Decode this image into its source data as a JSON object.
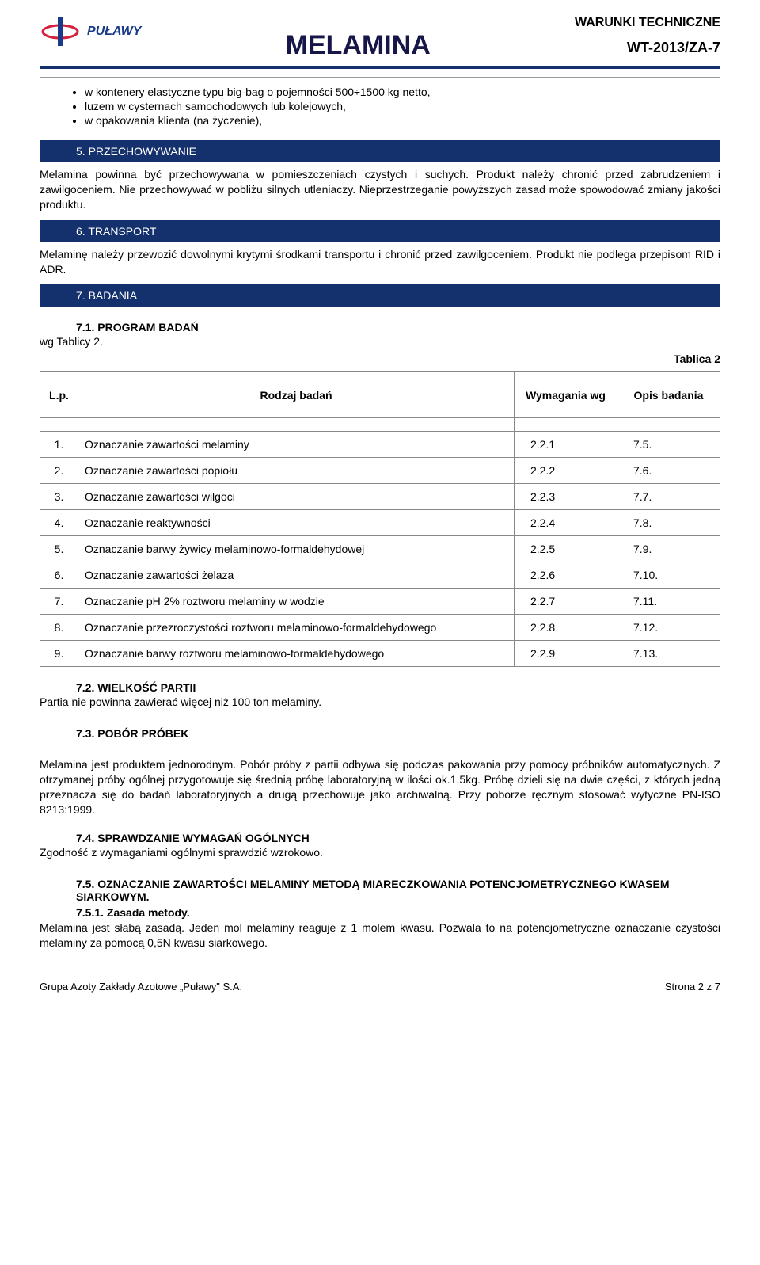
{
  "header": {
    "logo_text": "PUŁAWY",
    "title": "MELAMINA",
    "right_line1": "WARUNKI TECHNICZNE",
    "right_line2": "WT-2013/ZA-7"
  },
  "bullets": [
    "w kontenery elastyczne typu big-bag o pojemności 500÷1500 kg netto,",
    "luzem w cysternach samochodowych lub kolejowych,",
    "w opakowania klienta (na życzenie),"
  ],
  "sections": {
    "s5": "5.   PRZECHOWYWANIE",
    "s5_text": "Melamina powinna być przechowywana w pomieszczeniach czystych i suchych. Produkt należy chronić przed zabrudzeniem i zawilgoceniem. Nie przechowywać w pobliżu silnych utleniaczy. Nieprzestrzeganie powyższych zasad może spowodować zmiany jakości produktu.",
    "s6": "6.   TRANSPORT",
    "s6_text": "Melaminę należy przewozić dowolnymi krytymi środkami transportu i chronić przed zawilgoceniem. Produkt nie podlega przepisom RID i ADR.",
    "s7": "7.   BADANIA"
  },
  "program": {
    "heading": "7.1. PROGRAM BADAŃ",
    "subtext": "wg Tablicy 2.",
    "tablica": "Tablica 2"
  },
  "table": {
    "columns": {
      "lp": "L.p.",
      "rodzaj": "Rodzaj badań",
      "wym": "Wymagania wg",
      "opis": "Opis badania"
    },
    "rows": [
      {
        "n": "1.",
        "r": "Oznaczanie zawartości melaminy",
        "w": "2.2.1",
        "o": "7.5."
      },
      {
        "n": "2.",
        "r": "Oznaczanie zawartości popiołu",
        "w": "2.2.2",
        "o": "7.6."
      },
      {
        "n": "3.",
        "r": "Oznaczanie zawartości wilgoci",
        "w": "2.2.3",
        "o": "7.7."
      },
      {
        "n": "4.",
        "r": "Oznaczanie reaktywności",
        "w": "2.2.4",
        "o": "7.8."
      },
      {
        "n": "5.",
        "r": "Oznaczanie barwy żywicy melaminowo-formaldehydowej",
        "w": "2.2.5",
        "o": "7.9."
      },
      {
        "n": "6.",
        "r": "Oznaczanie zawartości żelaza",
        "w": "2.2.6",
        "o": "7.10."
      },
      {
        "n": "7.",
        "r": "Oznaczanie pH 2% roztworu melaminy w wodzie",
        "w": "2.2.7",
        "o": "7.11."
      },
      {
        "n": "8.",
        "r": "Oznaczanie przezroczystości roztworu melaminowo-formaldehydowego",
        "w": "2.2.8",
        "o": "7.12."
      },
      {
        "n": "9.",
        "r": "Oznaczanie barwy roztworu melaminowo-formaldehydowego",
        "w": "2.2.9",
        "o": "7.13."
      }
    ]
  },
  "sec72": {
    "heading": "7.2. WIELKOŚĆ PARTII",
    "text": "Partia nie powinna zawierać więcej niż 100 ton melaminy."
  },
  "sec73": {
    "heading": "7.3. POBÓR PRÓBEK",
    "text": "Melamina jest produktem jednorodnym. Pobór próby z partii odbywa się podczas pakowania przy pomocy próbników automatycznych. Z otrzymanej próby ogólnej przygotowuje się średnią próbę laboratoryjną w ilości ok.1,5kg. Próbę dzieli się na dwie części, z których jedną przeznacza się do badań laboratoryjnych a drugą przechowuje jako archiwalną. Przy poborze ręcznym stosować wytyczne PN-ISO 8213:1999."
  },
  "sec74": {
    "heading": "7.4. SPRAWDZANIE WYMAGAŃ OGÓLNYCH",
    "text": "Zgodność z wymaganiami ogólnymi sprawdzić wzrokowo."
  },
  "sec75": {
    "heading": "7.5.  OZNACZANIE ZAWARTOŚCI MELAMINY METODĄ MIARECZKOWANIA POTENCJOMETRYCZNEGO KWASEM SIARKOWYM.",
    "sub": "7.5.1. Zasada metody.",
    "text": "Melamina jest słabą zasadą. Jeden mol melaminy reaguje z 1 molem kwasu. Pozwala to na potencjometryczne oznaczanie czystości melaminy za pomocą 0,5N kwasu siarkowego."
  },
  "footer": {
    "left": "Grupa Azoty Zakłady Azotowe „Puławy\" S.A.",
    "right": "Strona 2 z 7"
  }
}
